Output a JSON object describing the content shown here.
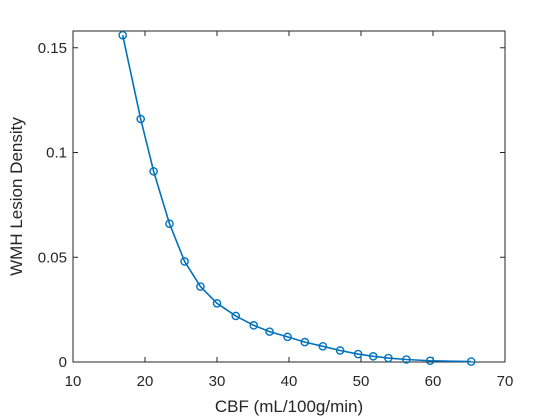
{
  "chart_data": {
    "type": "line",
    "title": "",
    "xlabel": "CBF (mL/100g/min)",
    "ylabel": "WMH Lesion Density",
    "xlim": [
      10,
      70
    ],
    "ylim": [
      0,
      0.158
    ],
    "xticks": [
      10,
      20,
      30,
      40,
      50,
      60,
      70
    ],
    "xtick_labels": [
      "10",
      "20",
      "30",
      "40",
      "50",
      "60",
      "70"
    ],
    "yticks": [
      0,
      0.05,
      0.1,
      0.15
    ],
    "ytick_labels": [
      "0",
      "0.05",
      "0.1",
      "0.15"
    ],
    "grid": false,
    "legend": "none",
    "marker": "circle",
    "color": "#0072BD",
    "series": [
      {
        "x": [
          16.9,
          19.4,
          21.2,
          23.4,
          25.5,
          27.7,
          30.0,
          32.6,
          35.1,
          37.3,
          39.8,
          42.2,
          44.7,
          47.1,
          49.6,
          51.7,
          53.8,
          56.3,
          59.6,
          65.3
        ],
        "y": [
          0.156,
          0.116,
          0.091,
          0.066,
          0.048,
          0.036,
          0.028,
          0.022,
          0.0175,
          0.0145,
          0.012,
          0.0095,
          0.0075,
          0.0055,
          0.0038,
          0.0027,
          0.0019,
          0.0012,
          0.0006,
          0.0002
        ]
      }
    ]
  }
}
